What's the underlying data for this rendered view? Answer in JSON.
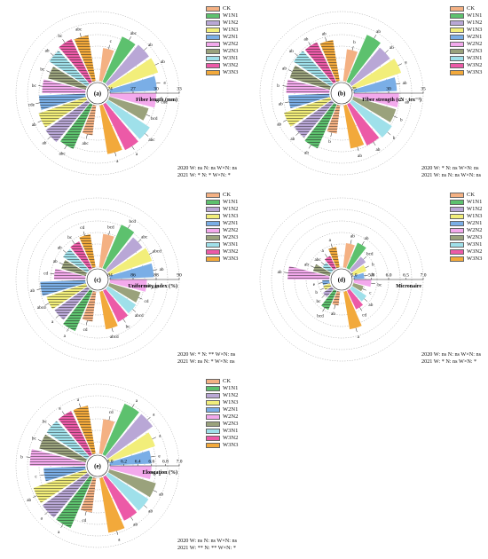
{
  "figure": {
    "treatments": [
      "CK",
      "W1N1",
      "W1N2",
      "W1N3",
      "W2N1",
      "W2N2",
      "W2N3",
      "W3N1",
      "W3N2",
      "W3N3"
    ],
    "colors": {
      "CK": "#f4b183",
      "W1N1": "#5dc16e",
      "W1N2": "#b9a7d6",
      "W1N3": "#f2ee7a",
      "W2N1": "#7aaee6",
      "W2N2": "#f3a9ec",
      "W2N3": "#9aa27c",
      "W3N1": "#9fe0ea",
      "W3N2": "#ec5aa7",
      "W3N3": "#f2a93b"
    }
  },
  "chart_data": [
    {
      "type": "radial-bar",
      "panel_label": "(a)",
      "axis_label": "Fiber length (mm)",
      "ticks": [
        "24",
        "27",
        "30",
        "33"
      ],
      "rmin": 24,
      "rmax": 33,
      "years": [
        "2020",
        "2021"
      ],
      "series": [
        {
          "name": "2020",
          "treatments": [
            "CK",
            "W1N1",
            "W1N2",
            "W1N3",
            "W2N1",
            "W2N2",
            "W2N3",
            "W3N1",
            "W3N2",
            "W3N3"
          ],
          "values": [
            28.3,
            30.4,
            30.6,
            30.7,
            30.1,
            30.0,
            29.3,
            30.5,
            30.6,
            30.4
          ],
          "letters": [
            "c",
            "abc",
            "ab",
            "ab",
            "a",
            "cde",
            "bcd",
            "abc",
            "a",
            "a"
          ]
        },
        {
          "name": "2021",
          "treatments": [
            "CK",
            "W1N1",
            "W1N2",
            "W1N3",
            "W2N1",
            "W2N2",
            "W2N3",
            "W3N1",
            "W3N2",
            "W3N3"
          ],
          "values": [
            27.9,
            30.3,
            30.7,
            30.5,
            30.0,
            29.6,
            29.1,
            29.9,
            30.2,
            30.0
          ],
          "letters": [
            "abc",
            "abc",
            "ab",
            "ab",
            "cde",
            "bc",
            "bc",
            "ab",
            "bc",
            "abc"
          ]
        }
      ],
      "stats": [
        "2020  W: ns  N: ns  W×N: ns",
        "2021  W: *    N: *   W×N: *"
      ]
    },
    {
      "type": "radial-bar",
      "panel_label": "(b)",
      "axis_label": "Fiber strength (cN · tex⁻¹)",
      "ticks": [
        "25",
        "30",
        "35"
      ],
      "rmin": 25,
      "rmax": 35,
      "years": [
        "2020",
        "2021"
      ],
      "series": [
        {
          "name": "2020",
          "treatments": [
            "CK",
            "W1N1",
            "W1N2",
            "W1N3",
            "W2N1",
            "W2N2",
            "W2N3",
            "W3N1",
            "W3N2",
            "W3N3"
          ],
          "values": [
            29.6,
            32.4,
            31.8,
            32.3,
            31.2,
            31.5,
            31.4,
            31.9,
            31.6,
            31.3
          ],
          "letters": [
            "b",
            "ab",
            "ab",
            "a",
            "ab",
            "ab",
            "b",
            "b",
            "ab",
            "ab"
          ]
        },
        {
          "name": "2021",
          "treatments": [
            "CK",
            "W1N1",
            "W1N2",
            "W1N3",
            "W2N1",
            "W2N2",
            "W2N3",
            "W3N1",
            "W3N2",
            "W3N3"
          ],
          "values": [
            29.1,
            31.9,
            31.6,
            32.0,
            30.9,
            31.2,
            31.0,
            31.5,
            31.4,
            31.0
          ],
          "letters": [
            "b",
            "ab",
            "ab",
            "ab",
            "ab",
            "b",
            "ab",
            "ab",
            "ab",
            "ab"
          ]
        }
      ],
      "stats": [
        "2020  W: *    N: ns  W×N: ns",
        "2021  W: ns   N: ns  W×N: ns"
      ]
    },
    {
      "type": "radial-bar",
      "panel_label": "(c)",
      "axis_label": "Uniformity index (%)",
      "ticks": [
        "84",
        "86",
        "88",
        "90"
      ],
      "rmin": 84,
      "rmax": 90,
      "years": [
        "2020",
        "2021"
      ],
      "series": [
        {
          "name": "2020",
          "treatments": [
            "CK",
            "W1N1",
            "W1N2",
            "W1N3",
            "W2N1",
            "W2N2",
            "W2N3",
            "W3N1",
            "W3N2",
            "W3N3"
          ],
          "values": [
            86.9,
            88.1,
            87.7,
            87.9,
            87.8,
            87.2,
            86.8,
            86.9,
            87.0,
            87.3
          ],
          "letters": [
            "bcd",
            "bcd",
            "abc",
            "abcd",
            "ab",
            "abc",
            "cd",
            "abcd",
            "bc",
            "abcd"
          ]
        },
        {
          "name": "2021",
          "treatments": [
            "CK",
            "W1N1",
            "W1N2",
            "W1N3",
            "W2N1",
            "W2N2",
            "W2N3",
            "W3N1",
            "W3N2",
            "W3N3"
          ],
          "values": [
            86.6,
            87.8,
            87.5,
            87.6,
            87.9,
            86.7,
            86.2,
            86.5,
            86.6,
            86.9
          ],
          "letters": [
            "cd",
            "a",
            "a",
            "abcd",
            "ab",
            "cd",
            "ab",
            "ab",
            "bc",
            "cd"
          ]
        }
      ],
      "stats": [
        "2020  W: *    N: **  W×N: ns",
        "2021  W: ns   N: *   W×N: ns"
      ]
    },
    {
      "type": "radial-bar",
      "panel_label": "(d)",
      "axis_label": "Micronaire",
      "ticks": [
        "5.0",
        "5.5",
        "6.0",
        "6.5",
        "7.0"
      ],
      "rmin": 5.0,
      "rmax": 7.0,
      "years": [
        "2020",
        "2021"
      ],
      "series": [
        {
          "name": "2020",
          "treatments": [
            "CK",
            "W1N1",
            "W1N2",
            "W1N3",
            "W2N1",
            "W2N2",
            "W2N3",
            "W3N1",
            "W3N2",
            "W3N3"
          ],
          "values": [
            5.7,
            5.8,
            5.5,
            5.4,
            5.3,
            5.5,
            5.3,
            5.5,
            5.6,
            6.1
          ],
          "letters": [
            "ab",
            "ab",
            "bcd",
            "b",
            "de",
            "bc",
            "c",
            "ab",
            "cd",
            "a"
          ]
        },
        {
          "name": "2021",
          "treatments": [
            "CK",
            "W1N1",
            "W1N2",
            "W1N3",
            "W2N1",
            "W2N2",
            "W2N3",
            "W3N1",
            "W3N2",
            "W3N3"
          ],
          "values": [
            5.4,
            5.6,
            5.3,
            5.2,
            5.2,
            6.2,
            5.5,
            5.3,
            5.4,
            5.6
          ],
          "letters": [
            "ab",
            "bcd",
            "bc",
            "b",
            "e",
            "ab",
            "ab",
            "abc",
            "a",
            "a"
          ]
        }
      ],
      "stats": [
        "2020  W: ns  N: ns  W×N: ns",
        "2021  W: *    N: ns  W×N: *"
      ]
    },
    {
      "type": "radial-bar",
      "panel_label": "(e)",
      "axis_label": "Elongation (%)",
      "ticks": [
        "6.0",
        "6.2",
        "6.4",
        "6.6",
        "6.8",
        "7.0"
      ],
      "rmin": 6.0,
      "rmax": 7.0,
      "years": [
        "2020",
        "2021"
      ],
      "series": [
        {
          "name": "2020",
          "treatments": [
            "CK",
            "W1N1",
            "W1N2",
            "W1N3",
            "W2N1",
            "W2N2",
            "W2N3",
            "W3N1",
            "W3N2",
            "W3N3"
          ],
          "values": [
            6.5,
            6.8,
            6.8,
            6.7,
            6.6,
            6.6,
            6.7,
            6.7,
            6.7,
            6.8
          ],
          "letters": [
            "cd",
            "a",
            "a",
            "a",
            "e",
            "a",
            "ab",
            "ab",
            "ab",
            "a"
          ]
        },
        {
          "name": "2021",
          "treatments": [
            "CK",
            "W1N1",
            "W1N2",
            "W1N3",
            "W2N1",
            "W2N2",
            "W2N3",
            "W3N1",
            "W3N2",
            "W3N3"
          ],
          "values": [
            6.5,
            6.8,
            6.8,
            6.8,
            6.6,
            6.8,
            6.7,
            6.7,
            6.7,
            6.7
          ],
          "letters": [
            "cd",
            "a",
            "a",
            "ab",
            "c",
            "b",
            "bc",
            "bc",
            "a",
            "a"
          ]
        }
      ],
      "stats": [
        "2020  W: ns  N: ns  W×N: ns",
        "2021  W: **   N: **  W×N: *"
      ]
    }
  ]
}
